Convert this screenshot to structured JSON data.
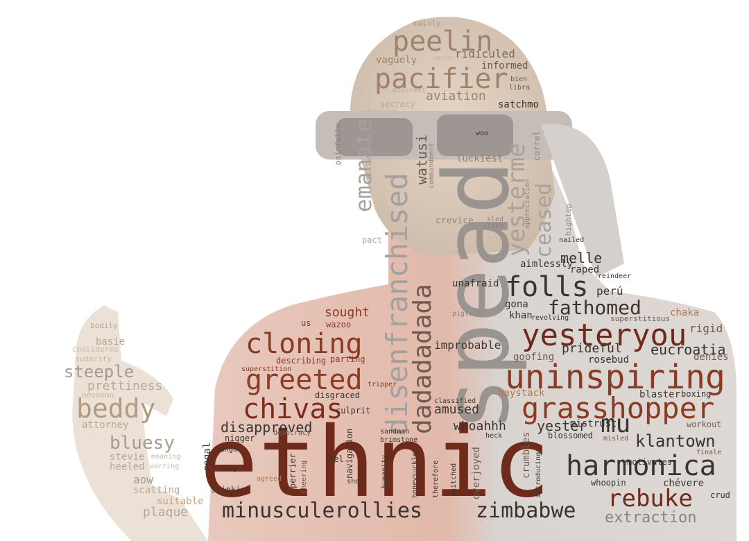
{
  "palette": {
    "darkest": "#6e2b1c",
    "dark": "#8b3a24",
    "mid": "#a0522d",
    "warm": "#b5754a",
    "tan": "#c8a27a",
    "gray": "#8c8c8c",
    "lightgray": "#b0aaa4",
    "black": "#2b2522",
    "faint": "#d8c8b4"
  },
  "words": [
    {
      "id": "ethnic",
      "text": "ethnic"
    },
    {
      "id": "spead",
      "text": "spead"
    },
    {
      "id": "disenfranchised",
      "text": "disenfranchised"
    },
    {
      "id": "dadadadada",
      "text": "dadadadada"
    },
    {
      "id": "uninspiring",
      "text": "uninspiring"
    },
    {
      "id": "yesteryou",
      "text": "yesteryou"
    },
    {
      "id": "grasshopper",
      "text": "grasshopper"
    },
    {
      "id": "harmonica",
      "text": "harmonica"
    },
    {
      "id": "cloning",
      "text": "cloning"
    },
    {
      "id": "greeted",
      "text": "greeted"
    },
    {
      "id": "chivas",
      "text": "chivas"
    },
    {
      "id": "minusculerollies",
      "text": "minusculerollies"
    },
    {
      "id": "zimbabwe",
      "text": "zimbabwe"
    },
    {
      "id": "rebuke",
      "text": "rebuke"
    },
    {
      "id": "pacifier",
      "text": "pacifier"
    },
    {
      "id": "peelin",
      "text": "peelin"
    },
    {
      "id": "beddy",
      "text": "beddy"
    },
    {
      "id": "folls",
      "text": "folls"
    },
    {
      "id": "fathomed",
      "text": "fathomed"
    },
    {
      "id": "klantown",
      "text": "klantown"
    },
    {
      "id": "mu",
      "text": "mu"
    },
    {
      "id": "emanate",
      "text": "emanate"
    },
    {
      "id": "yesterme",
      "text": "yesterme"
    },
    {
      "id": "ceased",
      "text": "ceased"
    },
    {
      "id": "steeple",
      "text": "steeple"
    },
    {
      "id": "bluesy",
      "text": "bluesy"
    },
    {
      "id": "extraction",
      "text": "extraction"
    },
    {
      "id": "prettiness",
      "text": "prettiness"
    },
    {
      "id": "disapproved",
      "text": "disapproved"
    },
    {
      "id": "eucroatia",
      "text": "eucroatia"
    },
    {
      "id": "yester",
      "text": "yester"
    },
    {
      "id": "melle",
      "text": "melle"
    },
    {
      "id": "sought",
      "text": "sought"
    },
    {
      "id": "amused",
      "text": "amused"
    },
    {
      "id": "whoahhh",
      "text": "whoahhh"
    },
    {
      "id": "improbable",
      "text": "improbable"
    },
    {
      "id": "prideful",
      "text": "prideful"
    },
    {
      "id": "aviation",
      "text": "aviation"
    },
    {
      "id": "ridiculed",
      "text": "ridiculed"
    },
    {
      "id": "vaguely",
      "text": "vaguely"
    },
    {
      "id": "informed",
      "text": "informed"
    },
    {
      "id": "satchmo",
      "text": "satchmo"
    },
    {
      "id": "luckiest",
      "text": "luckiest"
    },
    {
      "id": "watusi",
      "text": "watusi"
    },
    {
      "id": "aimlessly",
      "text": "aimlessly"
    },
    {
      "id": "raped",
      "text": "raped"
    },
    {
      "id": "unafraid",
      "text": "unafraid"
    },
    {
      "id": "peru",
      "text": "perú"
    },
    {
      "id": "gona",
      "text": "gona"
    },
    {
      "id": "khan",
      "text": "khan"
    },
    {
      "id": "chaka",
      "text": "chaka"
    },
    {
      "id": "rigid",
      "text": "rigid"
    },
    {
      "id": "denies",
      "text": "denies"
    },
    {
      "id": "rosebud",
      "text": "rosebud"
    },
    {
      "id": "goofing",
      "text": "goofing"
    },
    {
      "id": "haystack",
      "text": "haystack"
    },
    {
      "id": "blaster",
      "text": "blaster"
    },
    {
      "id": "boxing",
      "text": "boxing"
    },
    {
      "id": "workout",
      "text": "workout"
    },
    {
      "id": "blossomed",
      "text": "blossomed"
    },
    {
      "id": "misled",
      "text": "misled"
    },
    {
      "id": "motivates",
      "text": "motivates"
    },
    {
      "id": "finale",
      "text": "finale"
    },
    {
      "id": "whoopin",
      "text": "whoopin"
    },
    {
      "id": "chevere",
      "text": "chévere"
    },
    {
      "id": "crud",
      "text": "crud"
    },
    {
      "id": "crumbles",
      "text": "crumbles"
    },
    {
      "id": "overjoyed",
      "text": "overjoyed"
    },
    {
      "id": "heck",
      "text": "heck"
    },
    {
      "id": "sandman",
      "text": "sandman"
    },
    {
      "id": "brimstone",
      "text": "brimstone"
    },
    {
      "id": "navigation",
      "text": "navigation"
    },
    {
      "id": "culprit",
      "text": "culprit"
    },
    {
      "id": "disgraced",
      "text": "disgraced"
    },
    {
      "id": "parting",
      "text": "parting"
    },
    {
      "id": "describing",
      "text": "describing"
    },
    {
      "id": "wazoo",
      "text": "wazoo"
    },
    {
      "id": "us",
      "text": "us"
    },
    {
      "id": "nigger",
      "text": "nigger"
    },
    {
      "id": "democracy",
      "text": "democracy"
    },
    {
      "id": "bongo",
      "text": "bongo"
    },
    {
      "id": "regal",
      "text": "regal"
    },
    {
      "id": "suzy",
      "text": "suzy"
    },
    {
      "id": "mel",
      "text": "mel"
    },
    {
      "id": "stinkin",
      "text": "stinkin"
    },
    {
      "id": "agreed",
      "text": "agreed"
    },
    {
      "id": "perrier",
      "text": "perrier"
    },
    {
      "id": "cheering",
      "text": "cheering"
    },
    {
      "id": "humanity",
      "text": "humanity"
    },
    {
      "id": "honeysuckle",
      "text": "honeysuckle"
    },
    {
      "id": "therefore",
      "text": "therefore"
    },
    {
      "id": "snitched",
      "text": "snitched"
    },
    {
      "id": "introducing",
      "text": "introducing"
    },
    {
      "id": "attorney",
      "text": "attorney"
    },
    {
      "id": "stevie",
      "text": "stevie"
    },
    {
      "id": "heeled",
      "text": "heeled"
    },
    {
      "id": "aow",
      "text": "aow"
    },
    {
      "id": "scatting",
      "text": "scatting"
    },
    {
      "id": "suitable",
      "text": "suitable"
    },
    {
      "id": "plaque",
      "text": "plaque"
    },
    {
      "id": "basie",
      "text": "basie"
    },
    {
      "id": "bodily",
      "text": "bodily"
    },
    {
      "id": "considered",
      "text": "considered"
    },
    {
      "id": "ooooon",
      "text": "oooooon"
    },
    {
      "id": "moaning",
      "text": "moaning"
    },
    {
      "id": "warring",
      "text": "warring"
    },
    {
      "id": "audacity",
      "text": "audacity"
    },
    {
      "id": "crevice",
      "text": "crevice"
    },
    {
      "id": "sled",
      "text": "sled"
    },
    {
      "id": "alike",
      "text": "alike"
    },
    {
      "id": "pact",
      "text": "pact"
    },
    {
      "id": "nailed",
      "text": "nailed"
    },
    {
      "id": "reindeer",
      "text": "reindeer"
    },
    {
      "id": "revolving",
      "text": "revolving"
    },
    {
      "id": "superstitious",
      "text": "superstitious"
    },
    {
      "id": "pigtail",
      "text": "pigtail"
    },
    {
      "id": "secrecy",
      "text": "secrecy"
    },
    {
      "id": "hoodium",
      "text": "hoodium"
    },
    {
      "id": "discreet",
      "text": "discreet"
    },
    {
      "id": "libra",
      "text": "libra"
    },
    {
      "id": "bien",
      "text": "bien"
    },
    {
      "id": "mainly",
      "text": "mainly"
    },
    {
      "id": "warner",
      "text": "warner"
    },
    {
      "id": "painfully",
      "text": "painfully"
    },
    {
      "id": "gillespie",
      "text": "gillespie"
    },
    {
      "id": "commandment",
      "text": "commandment"
    },
    {
      "id": "corral",
      "text": "corral"
    },
    {
      "id": "appreciation",
      "text": "appreciation"
    },
    {
      "id": "hightop",
      "text": "hightop"
    },
    {
      "id": "superstition",
      "text": "superstition"
    },
    {
      "id": "classified",
      "text": "classified"
    },
    {
      "id": "tripper",
      "text": "tripper"
    },
    {
      "id": "mistrust",
      "text": "mistrust"
    },
    {
      "id": "sho",
      "text": "sho"
    },
    {
      "id": "woo",
      "text": "woo"
    }
  ]
}
